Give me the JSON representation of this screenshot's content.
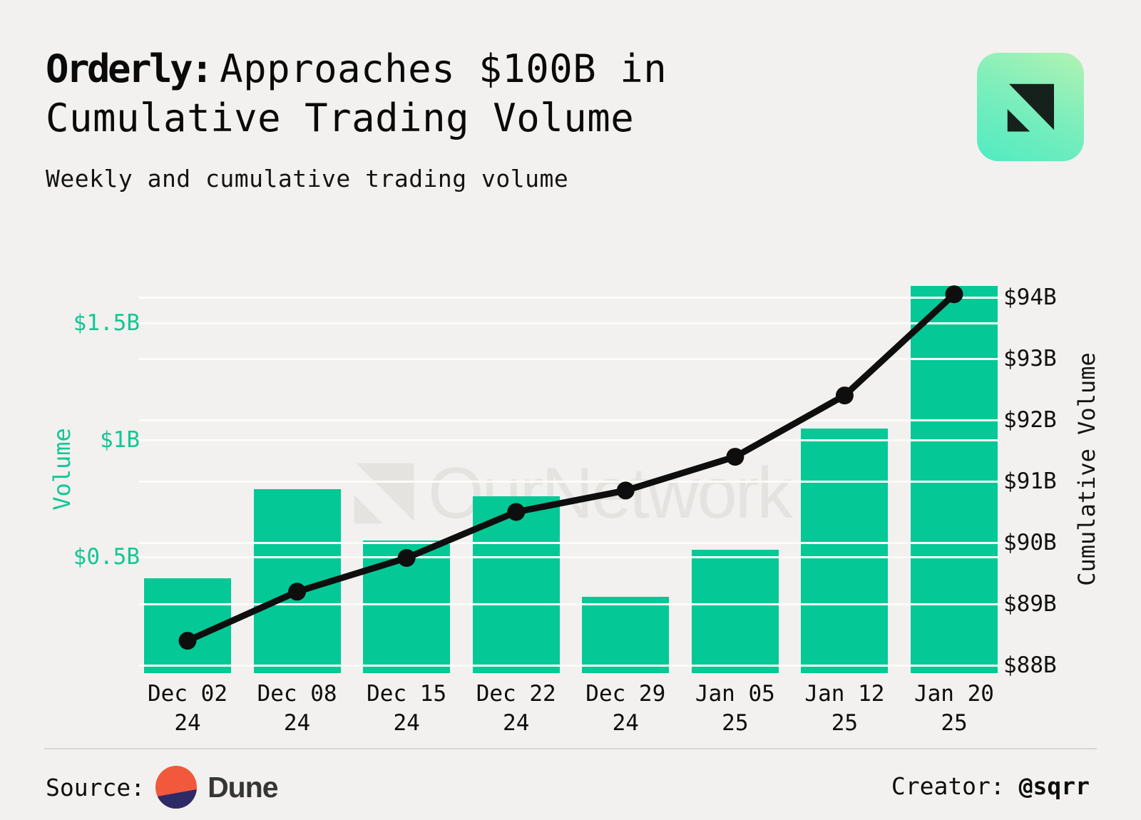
{
  "header": {
    "title_bold": "Orderly:",
    "title_rest": "Approaches $100B in Cumulative Trading Volume",
    "subtitle": "Weekly and cumulative trading volume"
  },
  "watermark": {
    "text": "OurNetwork",
    "logo": "ournetwork-logo",
    "color": "#e4e3e0"
  },
  "brand": {
    "logo": "ournetwork-logo"
  },
  "chart_data": {
    "type": "combo",
    "categories": [
      "Dec 02 24",
      "Dec 08 24",
      "Dec 15 24",
      "Dec 22 24",
      "Dec 29 24",
      "Jan 05 25",
      "Jan 12 25",
      "Jan 20 25"
    ],
    "categories_line1": [
      "Dec 02",
      "Dec 08",
      "Dec 15",
      "Dec 22",
      "Dec 29",
      "Jan 05",
      "Jan 12",
      "Jan 20"
    ],
    "categories_line2": [
      "24",
      "24",
      "24",
      "24",
      "24",
      "25",
      "25",
      "25"
    ],
    "series": [
      {
        "name": "Weekly Volume",
        "type": "bar",
        "axis": "left",
        "color": "#04c996",
        "values": [
          0.41,
          0.79,
          0.57,
          0.76,
          0.33,
          0.53,
          1.05,
          1.66
        ]
      },
      {
        "name": "Cumulative Volume",
        "type": "line",
        "axis": "right",
        "color": "#0e0e0e",
        "values": [
          88.4,
          89.2,
          89.75,
          90.5,
          90.85,
          91.4,
          92.4,
          94.05
        ]
      }
    ],
    "left_axis": {
      "title": "Volume",
      "unit": "$B",
      "tick_labels": [
        "$0.5B",
        "$1B",
        "$1.5B"
      ],
      "tick_values": [
        0.5,
        1,
        1.5
      ],
      "range": [
        0,
        1.75
      ]
    },
    "right_axis": {
      "title": "Cumulative Volume",
      "unit": "$B",
      "tick_labels": [
        "$88B",
        "$89B",
        "$90B",
        "$91B",
        "$92B",
        "$93B",
        "$94B"
      ],
      "tick_values": [
        88,
        89,
        90,
        91,
        92,
        93,
        94
      ],
      "range": [
        87.9,
        94.1
      ]
    },
    "grid": true,
    "legend": false,
    "title": "Orderly: Approaches $100B in Cumulative Trading Volume",
    "subtitle": "Weekly and cumulative trading volume"
  },
  "footer": {
    "source_label": "Source:",
    "source_name": "Dune",
    "creator_label": "Creator: ",
    "creator_handle": "@sqrr"
  },
  "colors": {
    "background": "#f2f1ef",
    "bar_green": "#04c996",
    "axis_green": "#12c794",
    "line_black": "#0e0e0e",
    "grid_white": "#fbfbf8",
    "watermark_gray": "#e4e3e0",
    "divider_gray": "#d8d6d2",
    "dune_orange": "#f1583c",
    "dune_navy": "#2d2a67",
    "logo_gradient": [
      "#abf2b3",
      "#55ebc1"
    ],
    "logo_glyph": "#17211c"
  }
}
